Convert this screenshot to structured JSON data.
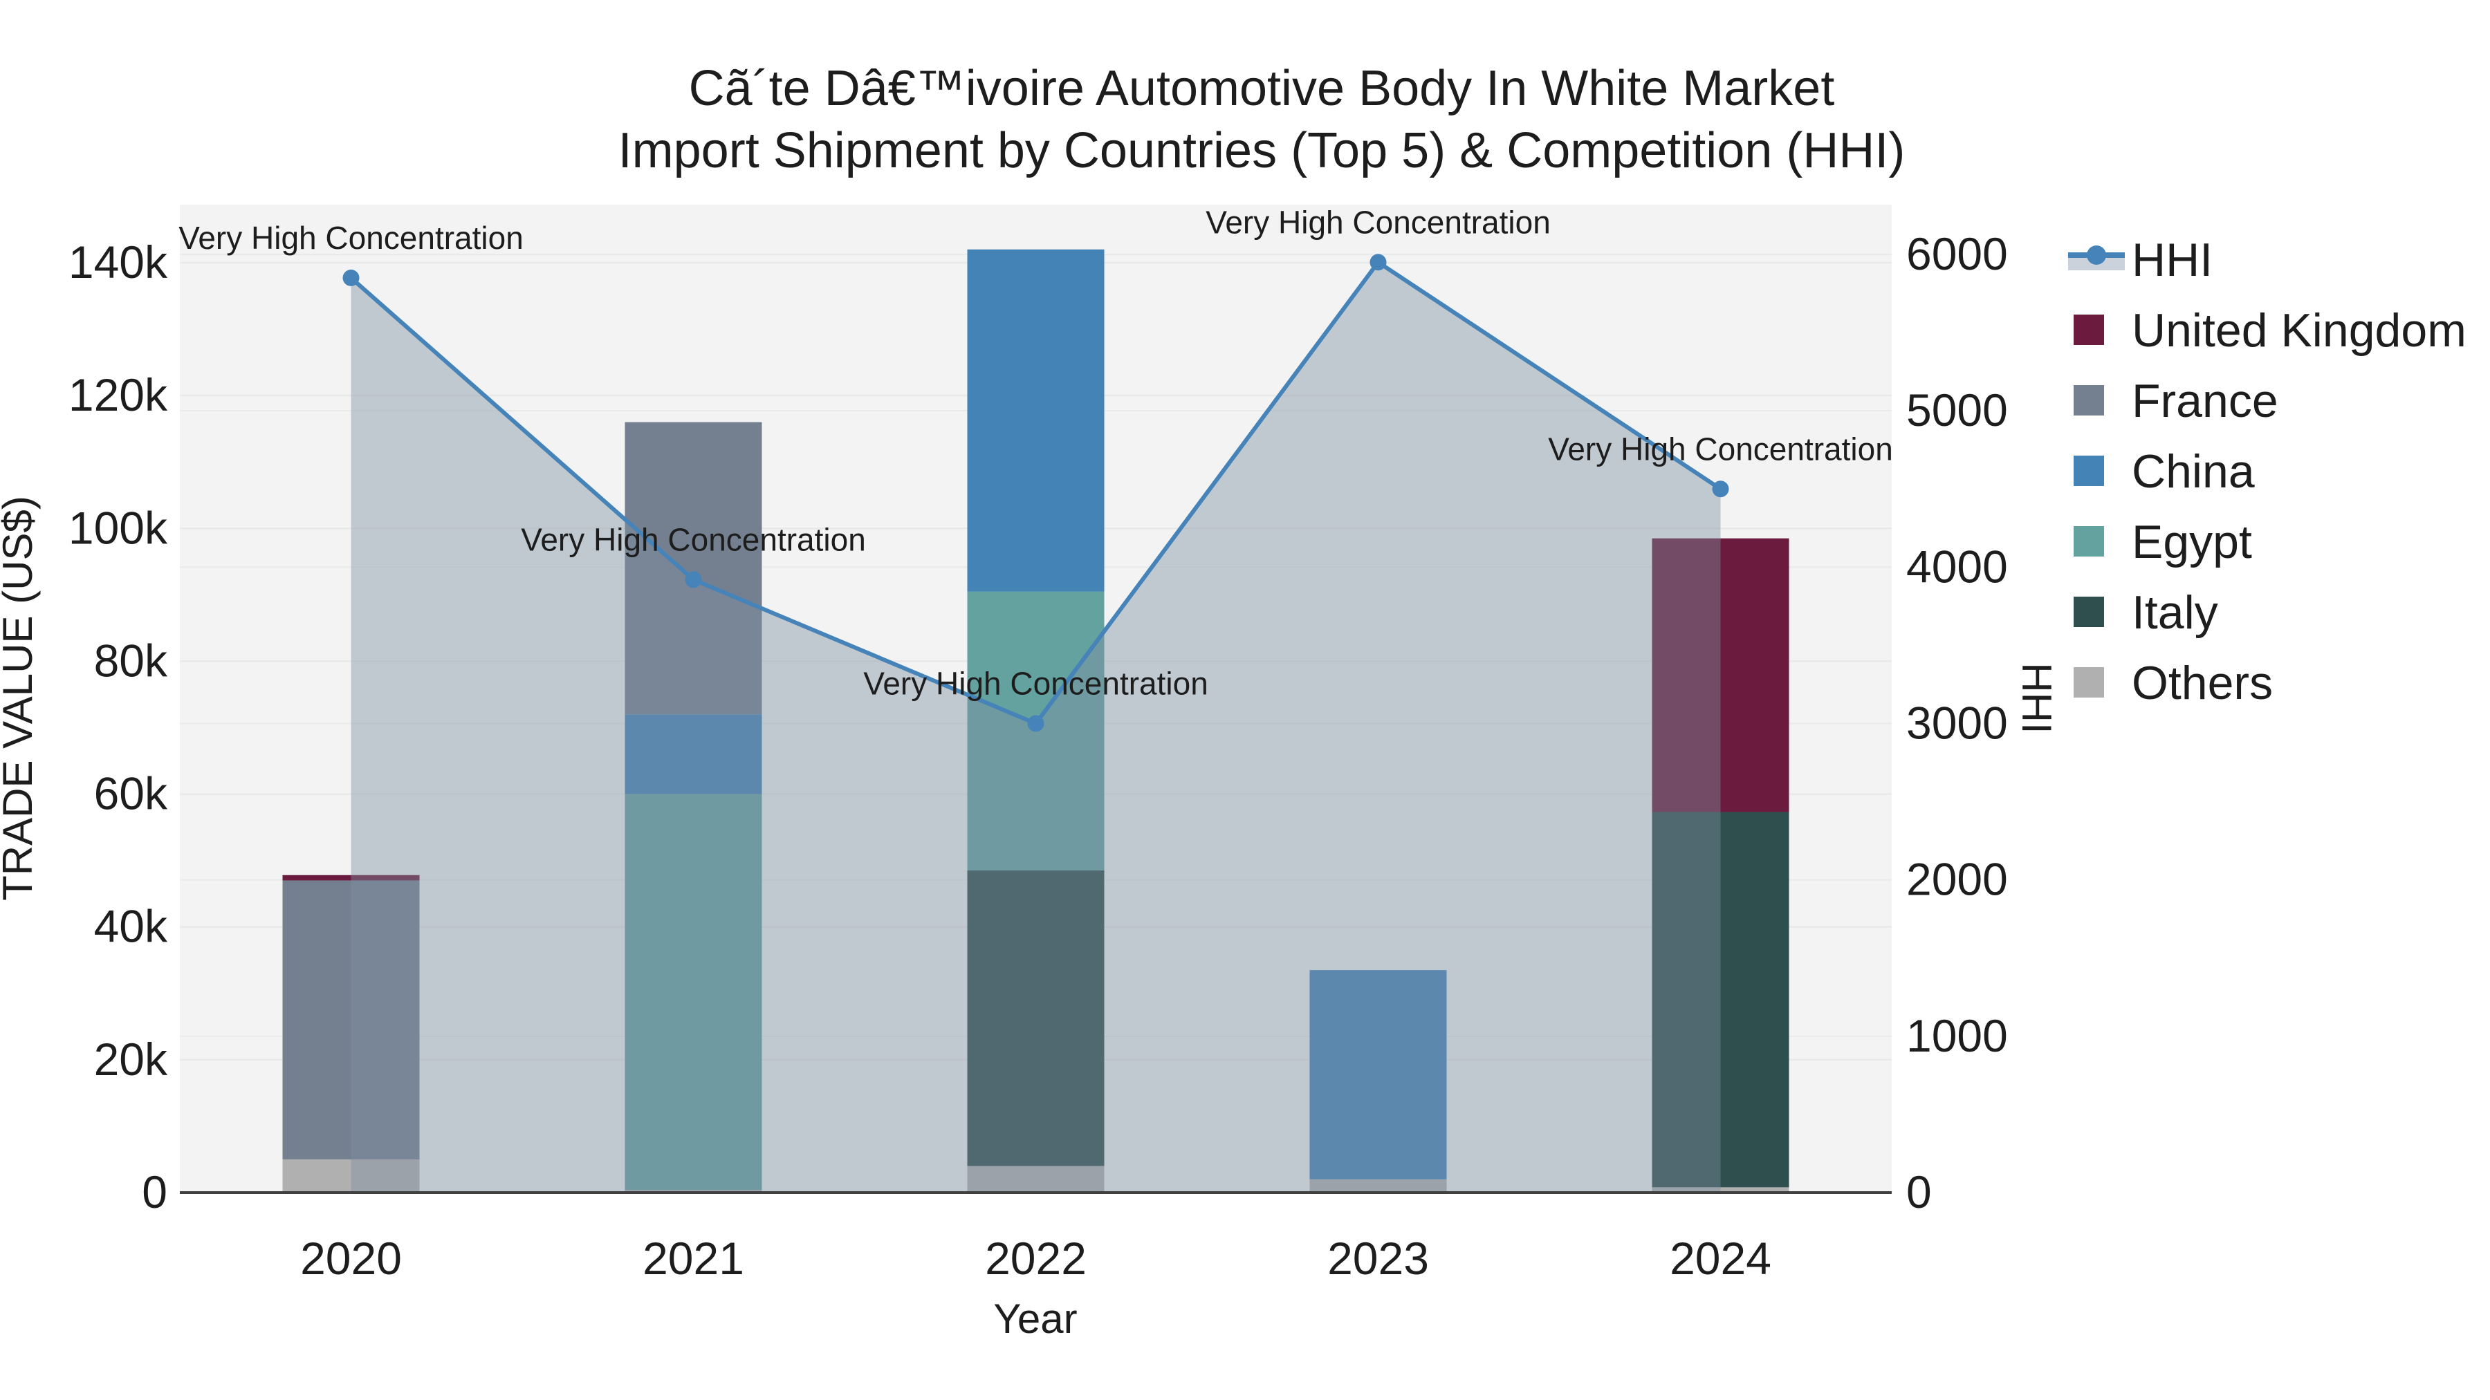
{
  "title": {
    "line1": "Cã´te Dâ€™ivoire Automotive Body In White Market",
    "line2": "Import Shipment by Countries (Top 5) & Competition (HHI)"
  },
  "chart_data": {
    "type": "stacked-bar+line",
    "title": "Cã´te Dâ€™ivoire Automotive Body In White Market Import Shipment by Countries (Top 5) & Competition (HHI)",
    "categories": [
      "2020",
      "2021",
      "2022",
      "2023",
      "2024"
    ],
    "bar_unit": "US$",
    "bar_series": [
      {
        "name": "United Kingdom",
        "color": "#6B1B3D",
        "values": [
          800,
          0,
          0,
          0,
          41200
        ]
      },
      {
        "name": "France",
        "color": "#74808F",
        "values": [
          42000,
          44000,
          0,
          0,
          0
        ]
      },
      {
        "name": "China",
        "color": "#4483B6",
        "values": [
          0,
          12000,
          51500,
          31500,
          0
        ]
      },
      {
        "name": "Egypt",
        "color": "#64A2A0",
        "values": [
          0,
          59600,
          42000,
          0,
          0
        ]
      },
      {
        "name": "Italy",
        "color": "#2F4F4E",
        "values": [
          0,
          0,
          44500,
          0,
          56500
        ]
      },
      {
        "name": "Others",
        "color": "#B0B0B0",
        "values": [
          5000,
          400,
          4000,
          2000,
          800
        ]
      }
    ],
    "stack_order_bottom_to_top": [
      "Others",
      "Italy",
      "Egypt",
      "China",
      "France",
      "United Kingdom"
    ],
    "line_series": {
      "name": "HHI",
      "color": "#4583B8",
      "area_fill": "rgba(127,142,163,0.42)",
      "values": [
        5850,
        3920,
        3000,
        5950,
        4500
      ]
    },
    "annotations": [
      {
        "x": "2020",
        "text": "Very High Concentration"
      },
      {
        "x": "2021",
        "text": "Very High Concentration"
      },
      {
        "x": "2022",
        "text": "Very High Concentration"
      },
      {
        "x": "2023",
        "text": "Very High Concentration"
      },
      {
        "x": "2024",
        "text": "Very High Concentration"
      }
    ],
    "axes": {
      "x": {
        "title": "Year",
        "ticks": [
          "2020",
          "2021",
          "2022",
          "2023",
          "2024"
        ]
      },
      "y_left": {
        "title": "TRADE VALUE (US$)",
        "ticks": [
          {
            "label": "0",
            "value": 0
          },
          {
            "label": "20k",
            "value": 20000
          },
          {
            "label": "40k",
            "value": 40000
          },
          {
            "label": "60k",
            "value": 60000
          },
          {
            "label": "80k",
            "value": 80000
          },
          {
            "label": "100k",
            "value": 100000
          },
          {
            "label": "120k",
            "value": 120000
          },
          {
            "label": "140k",
            "value": 140000
          }
        ],
        "range": [
          0,
          148700
        ]
      },
      "y_right": {
        "title": "HHI",
        "ticks": [
          {
            "label": "0",
            "value": 0
          },
          {
            "label": "1000",
            "value": 1000
          },
          {
            "label": "2000",
            "value": 2000
          },
          {
            "label": "3000",
            "value": 3000
          },
          {
            "label": "4000",
            "value": 4000
          },
          {
            "label": "5000",
            "value": 5000
          },
          {
            "label": "6000",
            "value": 6000
          }
        ],
        "range": [
          0,
          6330
        ]
      },
      "grid": "on"
    },
    "legend": {
      "position": "right",
      "entries": [
        {
          "label": "HHI",
          "type": "line"
        },
        {
          "label": "United Kingdom",
          "type": "square"
        },
        {
          "label": "France",
          "type": "square"
        },
        {
          "label": "China",
          "type": "square"
        },
        {
          "label": "Egypt",
          "type": "square"
        },
        {
          "label": "Italy",
          "type": "square"
        },
        {
          "label": "Others",
          "type": "square"
        }
      ]
    }
  }
}
